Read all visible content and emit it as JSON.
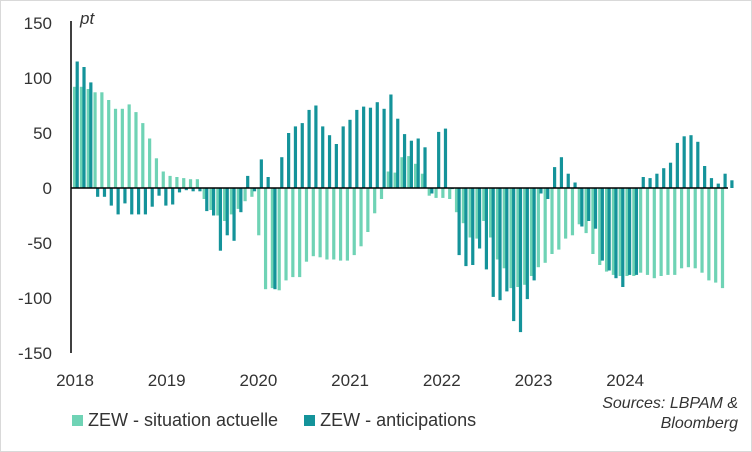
{
  "chart_data": {
    "type": "bar",
    "unit_label": "pt",
    "ylim": [
      -150,
      150
    ],
    "yticks": [
      150,
      100,
      50,
      0,
      -50,
      -100,
      -150
    ],
    "x_labels": [
      "2018",
      "2019",
      "2020",
      "2021",
      "2022",
      "2023",
      "2024"
    ],
    "colors": {
      "situation": "#6fd3b5",
      "anticipations": "#14939a"
    },
    "series": [
      {
        "name": "ZEW - situation actuelle",
        "key": "situation",
        "values": [
          92,
          92,
          90,
          87,
          87,
          80,
          72,
          72,
          76,
          69,
          59,
          45,
          27,
          15,
          11,
          10,
          9,
          8,
          8,
          -10,
          -20,
          -25,
          -30,
          -24,
          -19,
          -12,
          -8,
          -43,
          -92,
          -91,
          -93,
          -84,
          -81,
          -81,
          -67,
          -62,
          -63,
          -65,
          -65,
          -66,
          -66,
          -61,
          -53,
          -40,
          -23,
          -10,
          15,
          14,
          28,
          29,
          22,
          13,
          -7,
          -9,
          -9,
          -10,
          -22,
          -32,
          -45,
          -46,
          -30,
          -45,
          -65,
          -73,
          -91,
          -90,
          -88,
          -80,
          -72,
          -68,
          -60,
          -56,
          -46,
          -43,
          -33,
          -41,
          -60,
          -70,
          -76,
          -79,
          -80,
          -80,
          -80,
          -77,
          -79,
          -82,
          -80,
          -79,
          -79,
          -73,
          -72,
          -73,
          -77,
          -84,
          -86,
          -91
        ]
      },
      {
        "name": "ZEW - anticipations",
        "key": "anticipations",
        "values": [
          115,
          110,
          96,
          -8,
          -8,
          -16,
          -24,
          -14,
          -24,
          -24,
          -24,
          -17,
          -7,
          -16,
          -15,
          -4,
          -2,
          -3,
          -3,
          -21,
          -25,
          -57,
          -43,
          -48,
          -22,
          11,
          -3,
          26,
          10,
          -92,
          28,
          50,
          56,
          59,
          71,
          75,
          56,
          48,
          40,
          56,
          62,
          71,
          74,
          73,
          78,
          72,
          85,
          63,
          49,
          43,
          45,
          37,
          -5,
          51,
          54,
          -1,
          -61,
          -71,
          -70,
          -55,
          -74,
          -99,
          -102,
          -94,
          -121,
          -131,
          -101,
          -84,
          -5,
          -10,
          19,
          28,
          13,
          5,
          -35,
          -30,
          -37,
          -66,
          -75,
          -82,
          -90,
          -79,
          -79,
          10,
          9,
          13,
          18,
          23,
          41,
          47,
          48,
          42,
          20,
          9,
          4,
          13,
          7
        ]
      }
    ],
    "legend": [
      "ZEW - situation actuelle",
      "ZEW - anticipations"
    ],
    "source": [
      "Sources: LBPAM &",
      "Bloomberg"
    ]
  }
}
